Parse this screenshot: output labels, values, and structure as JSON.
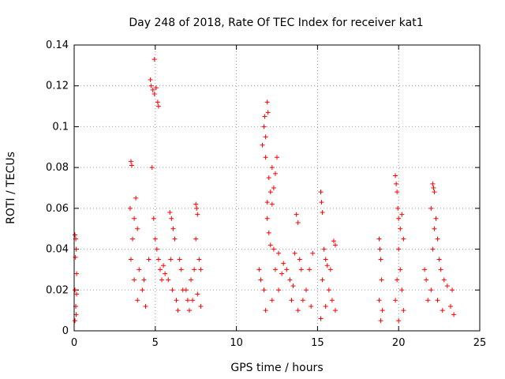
{
  "chart_data": {
    "type": "scatter",
    "title": "Day 248 of 2018, Rate Of TEC Index for receiver kat1",
    "xlabel": "GPS time / hours",
    "ylabel": "ROTI / TECUs",
    "xlim": [
      0,
      25
    ],
    "ylim": [
      0,
      0.14
    ],
    "xticks": [
      "0",
      "5",
      "10",
      "15",
      "20",
      "25"
    ],
    "yticks": [
      "0",
      "0.02",
      "0.04",
      "0.06",
      "0.08",
      "0.1",
      "0.12",
      "0.14"
    ],
    "grid": true,
    "marker": "plus",
    "color": "#ff0000",
    "series": [
      {
        "name": "ROTI",
        "points": [
          [
            0.05,
            0.047
          ],
          [
            0.1,
            0.045
          ],
          [
            0.12,
            0.04
          ],
          [
            0.08,
            0.036
          ],
          [
            0.15,
            0.028
          ],
          [
            0.05,
            0.02
          ],
          [
            0.1,
            0.012
          ],
          [
            0.12,
            0.008
          ],
          [
            0.05,
            0.005
          ],
          [
            0.15,
            0.018
          ],
          [
            3.5,
            0.083
          ],
          [
            3.55,
            0.081
          ],
          [
            3.45,
            0.06
          ],
          [
            3.7,
            0.055
          ],
          [
            3.8,
            0.065
          ],
          [
            3.9,
            0.05
          ],
          [
            3.6,
            0.045
          ],
          [
            3.5,
            0.035
          ],
          [
            3.7,
            0.025
          ],
          [
            3.9,
            0.015
          ],
          [
            4.0,
            0.03
          ],
          [
            4.2,
            0.02
          ],
          [
            4.4,
            0.012
          ],
          [
            4.6,
            0.035
          ],
          [
            4.3,
            0.025
          ],
          [
            4.7,
            0.123
          ],
          [
            4.75,
            0.12
          ],
          [
            4.85,
            0.118
          ],
          [
            4.95,
            0.116
          ],
          [
            5.05,
            0.119
          ],
          [
            5.15,
            0.112
          ],
          [
            5.2,
            0.11
          ],
          [
            4.95,
            0.133
          ],
          [
            4.8,
            0.08
          ],
          [
            4.9,
            0.055
          ],
          [
            5.0,
            0.045
          ],
          [
            5.1,
            0.04
          ],
          [
            5.2,
            0.035
          ],
          [
            5.3,
            0.03
          ],
          [
            5.4,
            0.025
          ],
          [
            5.5,
            0.032
          ],
          [
            5.6,
            0.028
          ],
          [
            5.8,
            0.025
          ],
          [
            5.9,
            0.058
          ],
          [
            6.0,
            0.055
          ],
          [
            6.1,
            0.05
          ],
          [
            6.2,
            0.045
          ],
          [
            5.95,
            0.035
          ],
          [
            6.05,
            0.02
          ],
          [
            6.3,
            0.015
          ],
          [
            6.5,
            0.035
          ],
          [
            6.6,
            0.03
          ],
          [
            6.7,
            0.02
          ],
          [
            6.4,
            0.01
          ],
          [
            6.9,
            0.02
          ],
          [
            7.0,
            0.015
          ],
          [
            7.2,
            0.025
          ],
          [
            7.4,
            0.03
          ],
          [
            7.5,
            0.062
          ],
          [
            7.55,
            0.06
          ],
          [
            7.6,
            0.057
          ],
          [
            7.7,
            0.035
          ],
          [
            7.8,
            0.03
          ],
          [
            7.5,
            0.045
          ],
          [
            7.3,
            0.015
          ],
          [
            7.1,
            0.01
          ],
          [
            7.6,
            0.018
          ],
          [
            7.8,
            0.012
          ],
          [
            11.4,
            0.03
          ],
          [
            11.5,
            0.025
          ],
          [
            11.7,
            0.02
          ],
          [
            11.75,
            0.105
          ],
          [
            11.8,
            0.095
          ],
          [
            11.9,
            0.112
          ],
          [
            11.95,
            0.107
          ],
          [
            11.7,
            0.1
          ],
          [
            11.6,
            0.091
          ],
          [
            11.8,
            0.085
          ],
          [
            12.0,
            0.075
          ],
          [
            12.1,
            0.068
          ],
          [
            11.9,
            0.063
          ],
          [
            12.2,
            0.08
          ],
          [
            12.4,
            0.077
          ],
          [
            12.5,
            0.085
          ],
          [
            12.3,
            0.07
          ],
          [
            12.2,
            0.062
          ],
          [
            11.9,
            0.055
          ],
          [
            12.0,
            0.048
          ],
          [
            12.1,
            0.042
          ],
          [
            12.3,
            0.04
          ],
          [
            12.6,
            0.038
          ],
          [
            12.4,
            0.03
          ],
          [
            12.8,
            0.028
          ],
          [
            12.6,
            0.02
          ],
          [
            12.2,
            0.015
          ],
          [
            11.8,
            0.01
          ],
          [
            12.9,
            0.033
          ],
          [
            13.1,
            0.03
          ],
          [
            13.3,
            0.025
          ],
          [
            13.5,
            0.022
          ],
          [
            13.7,
            0.057
          ],
          [
            13.8,
            0.053
          ],
          [
            13.6,
            0.038
          ],
          [
            13.9,
            0.035
          ],
          [
            14.0,
            0.03
          ],
          [
            13.4,
            0.015
          ],
          [
            13.8,
            0.01
          ],
          [
            14.1,
            0.015
          ],
          [
            14.3,
            0.02
          ],
          [
            14.5,
            0.03
          ],
          [
            14.7,
            0.038
          ],
          [
            14.6,
            0.012
          ],
          [
            15.2,
            0.068
          ],
          [
            15.25,
            0.063
          ],
          [
            15.3,
            0.058
          ],
          [
            15.4,
            0.04
          ],
          [
            15.5,
            0.035
          ],
          [
            15.6,
            0.032
          ],
          [
            15.3,
            0.025
          ],
          [
            15.7,
            0.02
          ],
          [
            15.9,
            0.015
          ],
          [
            16.0,
            0.044
          ],
          [
            16.1,
            0.042
          ],
          [
            15.8,
            0.03
          ],
          [
            15.5,
            0.012
          ],
          [
            16.1,
            0.01
          ],
          [
            15.2,
            0.006
          ],
          [
            18.8,
            0.045
          ],
          [
            18.85,
            0.04
          ],
          [
            18.9,
            0.035
          ],
          [
            18.95,
            0.025
          ],
          [
            18.8,
            0.015
          ],
          [
            19.0,
            0.01
          ],
          [
            18.9,
            0.005
          ],
          [
            19.8,
            0.076
          ],
          [
            19.85,
            0.072
          ],
          [
            19.9,
            0.068
          ],
          [
            19.95,
            0.06
          ],
          [
            20.0,
            0.055
          ],
          [
            20.1,
            0.05
          ],
          [
            20.2,
            0.057
          ],
          [
            20.3,
            0.045
          ],
          [
            20.0,
            0.04
          ],
          [
            20.1,
            0.03
          ],
          [
            19.9,
            0.025
          ],
          [
            20.2,
            0.02
          ],
          [
            19.8,
            0.015
          ],
          [
            20.3,
            0.01
          ],
          [
            20.0,
            0.005
          ],
          [
            21.6,
            0.03
          ],
          [
            21.7,
            0.025
          ],
          [
            21.8,
            0.015
          ],
          [
            22.1,
            0.072
          ],
          [
            22.15,
            0.07
          ],
          [
            22.2,
            0.068
          ],
          [
            22.0,
            0.06
          ],
          [
            22.3,
            0.055
          ],
          [
            22.2,
            0.05
          ],
          [
            22.4,
            0.045
          ],
          [
            22.5,
            0.035
          ],
          [
            22.6,
            0.03
          ],
          [
            22.8,
            0.025
          ],
          [
            23.0,
            0.022
          ],
          [
            23.3,
            0.02
          ],
          [
            23.2,
            0.012
          ],
          [
            22.7,
            0.01
          ],
          [
            22.4,
            0.015
          ],
          [
            22.1,
            0.04
          ],
          [
            22.0,
            0.02
          ],
          [
            23.4,
            0.008
          ]
        ]
      }
    ]
  }
}
